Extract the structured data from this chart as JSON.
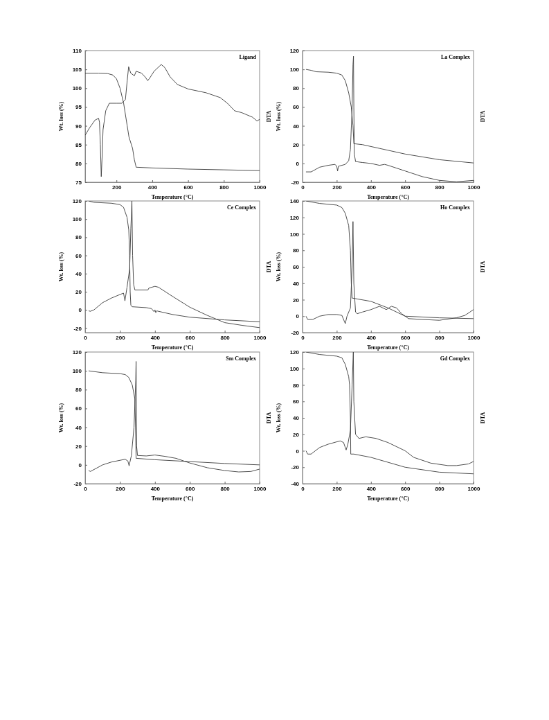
{
  "chart_data": [
    {
      "type": "line",
      "title": "Ligand",
      "xlabel": "Temperature (°C)",
      "ylabel": "Wt. loss (%)",
      "y2label": "DTA",
      "xlim": [
        25,
        1000
      ],
      "xticks": [
        200,
        400,
        600,
        800,
        1000
      ],
      "ylim": [
        75,
        110
      ],
      "yticks": [
        75,
        80,
        85,
        90,
        95,
        100,
        105,
        110
      ],
      "series": [
        {
          "color": "#3a3a3a",
          "x": [
            25,
            100,
            150,
            180,
            200,
            220,
            240,
            260,
            270,
            280,
            290,
            300,
            310,
            400,
            600,
            800,
            1000
          ],
          "values": [
            104,
            104,
            103.9,
            103.5,
            102.5,
            100,
            96,
            90,
            87,
            85.5,
            84,
            81,
            79,
            78.8,
            78.5,
            78.3,
            78.1
          ]
        },
        {
          "color": "#3a3a3a",
          "x": [
            25,
            50,
            80,
            100,
            105,
            110,
            115,
            120,
            125,
            140,
            160,
            200,
            230,
            250,
            260,
            268,
            280,
            300,
            310,
            340,
            360,
            375,
            390,
            410,
            450,
            470,
            500,
            540,
            600,
            700,
            780,
            820,
            860,
            900,
            960,
            985,
            1000
          ],
          "values": [
            87.5,
            89.5,
            91.5,
            92,
            91,
            85,
            76.5,
            82,
            89,
            94,
            96,
            96,
            96,
            97,
            102,
            105.7,
            104,
            103.3,
            104.5,
            104,
            103,
            102,
            103,
            104.5,
            106.3,
            105.5,
            103,
            101,
            99.8,
            98.8,
            97.5,
            96,
            94,
            93.5,
            92.3,
            91.3,
            91.7
          ]
        }
      ]
    },
    {
      "type": "line",
      "title": "La Complex",
      "xlabel": "Temperature (°C)",
      "ylabel": "Wt. loss (%)",
      "y2label": "DTA",
      "xlim": [
        0,
        1000
      ],
      "xticks": [
        0,
        200,
        400,
        600,
        800,
        1000
      ],
      "ylim": [
        -20,
        120
      ],
      "yticks": [
        -20,
        0,
        20,
        40,
        60,
        80,
        100,
        120
      ],
      "series": [
        {
          "color": "#3a3a3a",
          "x": [
            20,
            50,
            80,
            150,
            200,
            230,
            250,
            270,
            285,
            295,
            300,
            350,
            450,
            500,
            600,
            800,
            1000
          ],
          "values": [
            100,
            99,
            97.5,
            97,
            96,
            94,
            88,
            75,
            60,
            40,
            21,
            20,
            16,
            14,
            10,
            4,
            0.5
          ]
        },
        {
          "color": "#3a3a3a",
          "x": [
            20,
            50,
            80,
            100,
            150,
            190,
            200,
            205,
            210,
            250,
            270,
            280,
            290,
            295,
            298,
            300,
            303,
            310,
            350,
            400,
            450,
            480,
            500,
            600,
            700,
            800,
            900,
            1000
          ],
          "values": [
            -9,
            -9,
            -6,
            -4,
            -2,
            -1,
            -3,
            -8,
            -3,
            -1,
            3,
            15,
            60,
            105,
            114,
            60,
            10,
            2,
            1,
            0,
            -2,
            -1,
            -2,
            -8,
            -14,
            -18,
            -19.5,
            -18
          ]
        }
      ]
    },
    {
      "type": "line",
      "title": "Ce Complex",
      "xlabel": "Temperature (°C)",
      "ylabel": "Wt. loss (%)",
      "y2label": "DTA",
      "xlim": [
        0,
        1000
      ],
      "xticks": [
        0,
        200,
        400,
        600,
        800,
        1000
      ],
      "ylim": [
        -25,
        120
      ],
      "yticks": [
        -20,
        0,
        20,
        40,
        60,
        80,
        100,
        120
      ],
      "series": [
        {
          "color": "#3a3a3a",
          "x": [
            20,
            50,
            150,
            200,
            220,
            240,
            250,
            255,
            258,
            262,
            270,
            350,
            380,
            395,
            400,
            405,
            410,
            420,
            500,
            600,
            800,
            1000
          ],
          "values": [
            120,
            118.5,
            117.5,
            116,
            113,
            102,
            88,
            60,
            20,
            5,
            3.5,
            2.5,
            1.5,
            -2,
            0,
            -3,
            -1,
            -1.5,
            -5,
            -8,
            -11,
            -13
          ]
        },
        {
          "color": "#3a3a3a",
          "x": [
            20,
            30,
            50,
            100,
            150,
            200,
            220,
            228,
            240,
            255,
            262,
            268,
            272,
            278,
            285,
            360,
            365,
            400,
            420,
            500,
            600,
            700,
            800,
            900,
            1000
          ],
          "values": [
            -1,
            -1.5,
            0,
            8,
            13,
            17,
            18.5,
            10,
            25,
            45,
            90,
            120,
            60,
            28,
            22,
            22,
            24,
            26,
            25,
            15,
            3,
            -6,
            -14,
            -17,
            -19.5
          ]
        }
      ]
    },
    {
      "type": "line",
      "title": "Ho Complex",
      "xlabel": "Temperature (°C)",
      "ylabel": "Wt. loss (%)",
      "y2label": "DTA",
      "xlim": [
        0,
        1000
      ],
      "xticks": [
        0,
        200,
        400,
        600,
        800,
        1000
      ],
      "ylim": [
        -20,
        140
      ],
      "yticks": [
        -20,
        0,
        20,
        40,
        60,
        80,
        100,
        120,
        140
      ],
      "series": [
        {
          "color": "#3a3a3a",
          "x": [
            20,
            100,
            200,
            230,
            250,
            270,
            280,
            285,
            290,
            400,
            500,
            600,
            800,
            1000
          ],
          "values": [
            140,
            137,
            135,
            132,
            125,
            110,
            80,
            40,
            22,
            18,
            10,
            0,
            -2,
            -3
          ]
        },
        {
          "color": "#3a3a3a",
          "x": [
            20,
            30,
            60,
            100,
            150,
            200,
            230,
            250,
            260,
            280,
            290,
            295,
            300,
            310,
            320,
            350,
            400,
            450,
            490,
            520,
            550,
            580,
            620,
            700,
            800,
            900,
            950,
            1000
          ],
          "values": [
            0,
            -4,
            -4,
            0,
            2,
            2,
            1,
            -9,
            0,
            10,
            60,
            115,
            40,
            5,
            3,
            5,
            8,
            12,
            8,
            12,
            10,
            3,
            -3,
            -4,
            -5,
            -2,
            1,
            8
          ]
        }
      ]
    },
    {
      "type": "line",
      "title": "Sm Complex",
      "xlabel": "Temperature (°C)",
      "ylabel": "Wt. loss (%)",
      "y2label": "DTA",
      "xlim": [
        0,
        1000
      ],
      "xticks": [
        0,
        200,
        400,
        600,
        800,
        1000
      ],
      "ylim": [
        -20,
        120
      ],
      "yticks": [
        -20,
        0,
        20,
        40,
        60,
        80,
        100,
        120
      ],
      "series": [
        {
          "color": "#3a3a3a",
          "x": [
            20,
            100,
            200,
            230,
            250,
            270,
            285,
            290,
            292,
            400,
            600,
            800,
            1000
          ],
          "values": [
            100,
            98,
            97,
            96,
            93,
            85,
            70,
            30,
            7,
            5.5,
            3.5,
            1.5,
            0
          ]
        },
        {
          "color": "#3a3a3a",
          "x": [
            20,
            30,
            100,
            150,
            230,
            245,
            252,
            265,
            280,
            290,
            292,
            295,
            300,
            350,
            400,
            460,
            520,
            600,
            700,
            800,
            880,
            950,
            1000
          ],
          "values": [
            -6,
            -7,
            0,
            3,
            6,
            4,
            -1,
            10,
            40,
            90,
            110,
            20,
            10,
            9.5,
            10.5,
            9,
            7,
            2,
            -3,
            -6,
            -7.5,
            -7,
            -4.5
          ]
        }
      ]
    },
    {
      "type": "line",
      "title": "Gd Complex",
      "xlabel": "Temperature (°C)",
      "ylabel": "Wt. loss (%)",
      "y2label": "DTA",
      "xlim": [
        0,
        1000
      ],
      "xticks": [
        0,
        200,
        400,
        600,
        800,
        1000
      ],
      "ylim": [
        -40,
        120
      ],
      "yticks": [
        -40,
        -20,
        0,
        20,
        40,
        60,
        80,
        100,
        120
      ],
      "series": [
        {
          "color": "#3a3a3a",
          "x": [
            20,
            100,
            200,
            230,
            250,
            270,
            275,
            280,
            282,
            300,
            400,
            500,
            600,
            800,
            1000
          ],
          "values": [
            120,
            117,
            115,
            113,
            105,
            90,
            80,
            40,
            -4,
            -4,
            -8,
            -14,
            -20,
            -26,
            -28
          ]
        },
        {
          "color": "#3a3a3a",
          "x": [
            20,
            30,
            50,
            100,
            150,
            220,
            240,
            255,
            265,
            280,
            290,
            297,
            300,
            310,
            330,
            370,
            430,
            500,
            600,
            650,
            750,
            850,
            900,
            970,
            1000
          ],
          "values": [
            0,
            -4,
            -4,
            4,
            8,
            12,
            10,
            1,
            8,
            25,
            80,
            120,
            60,
            20,
            15,
            17,
            15,
            10,
            0,
            -8,
            -15,
            -18,
            -18,
            -16,
            -13
          ]
        }
      ]
    }
  ]
}
